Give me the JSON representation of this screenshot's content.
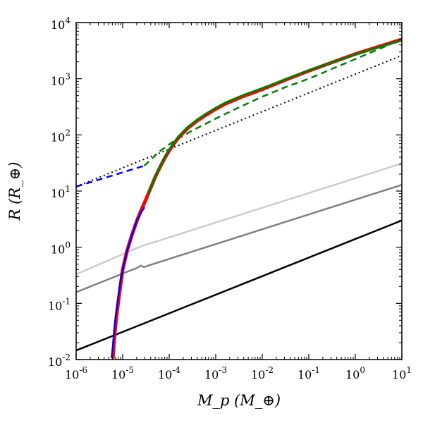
{
  "chart_data": {
    "type": "line",
    "title": "",
    "xlabel": "M_p (M_⊕)",
    "ylabel": "R (R_⊕)",
    "xscale": "log",
    "yscale": "log",
    "xlim": [
      1e-06,
      10
    ],
    "ylim": [
      0.01,
      10000
    ],
    "grid": false,
    "x_tick_labels": [
      {
        "base": "10",
        "exp": "-6"
      },
      {
        "base": "10",
        "exp": "-5"
      },
      {
        "base": "10",
        "exp": "-4"
      },
      {
        "base": "10",
        "exp": "-3"
      },
      {
        "base": "10",
        "exp": "-2"
      },
      {
        "base": "10",
        "exp": "-1"
      },
      {
        "base": "10",
        "exp": "0"
      },
      {
        "base": "10",
        "exp": "1"
      }
    ],
    "y_tick_labels": [
      {
        "base": "10",
        "exp": "-2"
      },
      {
        "base": "10",
        "exp": "-1"
      },
      {
        "base": "10",
        "exp": "0"
      },
      {
        "base": "10",
        "exp": "1"
      },
      {
        "base": "10",
        "exp": "2"
      },
      {
        "base": "10",
        "exp": "3"
      },
      {
        "base": "10",
        "exp": "4"
      }
    ],
    "series": [
      {
        "color": "#000000",
        "style": "solid",
        "width": 2.5,
        "x": [
          1e-06,
          10
        ],
        "y": [
          0.0145,
          3.0
        ]
      },
      {
        "color": "#808080",
        "style": "solid",
        "width": 2.5,
        "x": [
          1e-06,
          2.05e-05,
          2.45e-05,
          2.85e-05,
          3.25e-05,
          10
        ],
        "y": [
          0.158,
          0.43,
          0.47,
          0.44,
          0.46,
          12.9
        ]
      },
      {
        "color": "#cccccc",
        "style": "solid",
        "width": 2.5,
        "x": [
          1e-06,
          2.5e-05,
          10
        ],
        "y": [
          0.33,
          1.04,
          31
        ]
      },
      {
        "color": "#000000",
        "style": "dotted",
        "width": 2,
        "x": [
          1e-06,
          10
        ],
        "y": [
          12.0,
          2600
        ]
      },
      {
        "color": "#0000ff",
        "style": "dashed",
        "width": 2.5,
        "x": [
          1e-06,
          2.91e-05
        ],
        "y": [
          12.0,
          28.2
        ]
      },
      {
        "color": "#008000",
        "style": "dashed",
        "width": 2.5,
        "x": [
          2.91e-05,
          6.31e-05,
          0.000126,
          0.000316,
          0.001,
          0.00316,
          0.01,
          0.0316,
          0.1,
          1,
          10
        ],
        "y": [
          28.2,
          51.3,
          77.6,
          120,
          195,
          309,
          479,
          708,
          1000,
          2240,
          5010
        ]
      },
      {
        "color": "#ff0000",
        "style": "solid",
        "width": 5,
        "x": [
          6.2e-06,
          6.5e-06,
          7e-06,
          7.7e-06,
          8.6e-06,
          1e-05,
          1.26e-05,
          1.58e-05,
          2e-05,
          2.51e-05,
          3.16e-05,
          3.98e-05,
          5.01e-05,
          6.31e-05,
          7.94e-05,
          0.0001,
          0.000126,
          0.000158,
          0.000251,
          0.000398,
          0.000631,
          0.001,
          0.00158,
          0.00251,
          0.00398,
          0.00631,
          0.01,
          0.0316,
          0.1,
          0.316,
          1,
          3.16,
          10
        ],
        "y": [
          0.011,
          0.02,
          0.04,
          0.08,
          0.16,
          0.4,
          0.9,
          1.65,
          2.9,
          4.6,
          7.1,
          11.2,
          17.8,
          26.3,
          38.0,
          52.5,
          69.2,
          89.1,
          132,
          178,
          229,
          288,
          355,
          417,
          490,
          562,
          646,
          955,
          1380,
          1950,
          2750,
          3720,
          5010
        ]
      },
      {
        "color": "#0000ff",
        "style": "solid",
        "width": 2.5,
        "x": [
          5.8e-06,
          6.2e-06,
          6.5e-06,
          7e-06,
          7.7e-06,
          8.6e-06,
          1e-05,
          1.26e-05,
          1.58e-05,
          2e-05,
          2.51e-05,
          2.88e-05
        ],
        "y": [
          0.011,
          0.018,
          0.03,
          0.055,
          0.1,
          0.2,
          0.4,
          0.9,
          1.65,
          2.9,
          4.2,
          5.0
        ]
      },
      {
        "color": "#008000",
        "style": "solid",
        "width": 3,
        "x": [
          3.63e-05,
          3.98e-05,
          5.01e-05,
          6.31e-05,
          7.94e-05,
          0.0001,
          0.000126,
          0.000158,
          0.000251,
          0.000398,
          0.000631,
          0.001,
          0.00158,
          0.00251,
          0.00398,
          0.00631,
          0.01,
          0.0316,
          0.1,
          0.316,
          1,
          3.16,
          10
        ],
        "y": [
          8.9,
          11.2,
          17.8,
          26.9,
          39.8,
          55.0,
          72.4,
          93.3,
          138,
          186,
          240,
          302,
          372,
          437,
          513,
          589,
          676,
          977,
          1410,
          1950,
          2690,
          3630,
          4790
        ]
      }
    ]
  }
}
